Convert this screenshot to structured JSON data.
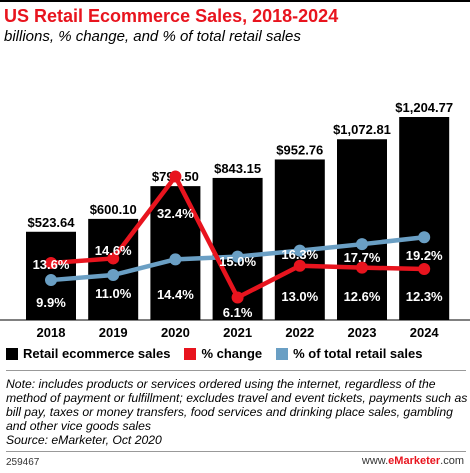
{
  "header": {
    "title": "US Retail Ecommerce Sales, 2018-2024",
    "subtitle": "billions, % change, and % of total retail sales"
  },
  "chart_data": {
    "type": "bar",
    "categories": [
      "2018",
      "2019",
      "2020",
      "2021",
      "2022",
      "2023",
      "2024"
    ],
    "series": [
      {
        "name": "Retail ecommerce sales",
        "type": "bar",
        "color": "#000000",
        "values": [
          523.64,
          600.1,
          794.5,
          843.15,
          952.76,
          1072.81,
          1204.77
        ],
        "labels": [
          "$523.64",
          "$600.10",
          "$794.50",
          "$843.15",
          "$952.76",
          "$1,072.81",
          "$1,204.77"
        ]
      },
      {
        "name": "% change",
        "type": "line",
        "color": "#e8141e",
        "values": [
          13.6,
          14.6,
          32.4,
          6.1,
          13.0,
          12.6,
          12.3
        ],
        "labels": [
          "13.6%",
          "14.6%",
          "32.4%",
          "6.1%",
          "13.0%",
          "12.6%",
          "12.3%"
        ]
      },
      {
        "name": "% of total retail sales",
        "type": "line",
        "color": "#6a9fc4",
        "values": [
          9.9,
          11.0,
          14.4,
          15.0,
          16.3,
          17.7,
          19.2
        ],
        "labels": [
          "9.9%",
          "11.0%",
          "14.4%",
          "15.0%",
          "16.3%",
          "17.7%",
          "19.2%"
        ]
      }
    ],
    "legend": "bottom"
  },
  "legend": {
    "items": [
      {
        "label": "Retail ecommerce sales",
        "color": "#000000"
      },
      {
        "label": "% change",
        "color": "#e8141e"
      },
      {
        "label": "% of total retail sales",
        "color": "#6a9fc4"
      }
    ]
  },
  "note": {
    "text": "Note: includes products or services ordered using the internet, regardless of the method of payment or fulfillment; excludes travel and event tickets, payments such as bill pay, taxes or money transfers, food services and drinking place sales, gambling and other vice goods sales",
    "source": "Source: eMarketer, Oct 2020"
  },
  "footer": {
    "id": "259467",
    "brand_prefix": "www.",
    "brand_name": "eMarketer",
    "brand_suffix": ".com"
  }
}
